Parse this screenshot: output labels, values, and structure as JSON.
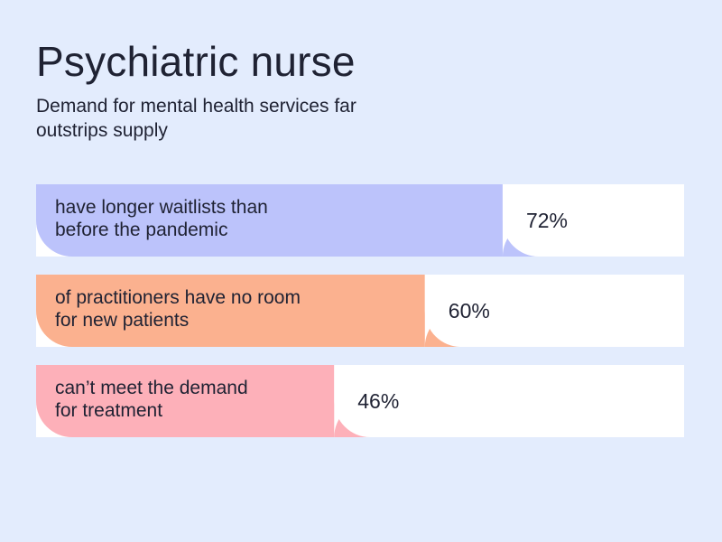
{
  "title": "Psychiatric nurse",
  "subtitle": "Demand for mental health services far outstrips supply",
  "chart_data": {
    "type": "bar",
    "orientation": "horizontal",
    "xlim": [
      0,
      100
    ],
    "unit": "%",
    "categories": [
      [
        "have longer waitlists than",
        "before the pandemic"
      ],
      [
        "of practitioners have no room",
        "for new patients"
      ],
      [
        "can’t meet the demand",
        "for treatment"
      ]
    ],
    "values": [
      72,
      60,
      46
    ],
    "value_labels": [
      "72%",
      "60%",
      "46%"
    ],
    "colors": [
      "#bcc3fb",
      "#fbb18f",
      "#fdb0b9"
    ],
    "track_color": "#ffffff"
  }
}
